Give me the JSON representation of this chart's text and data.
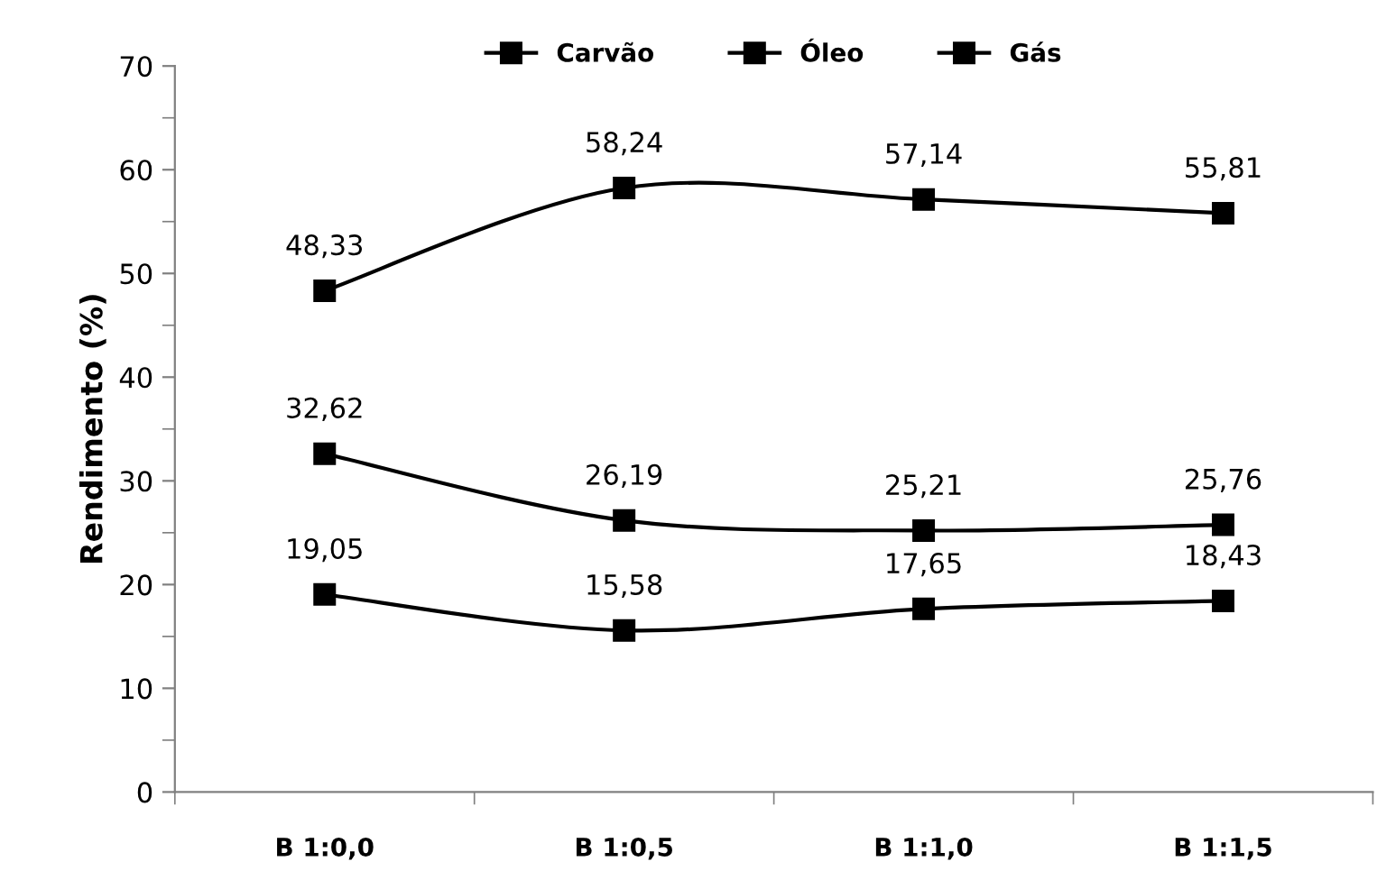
{
  "chart_data": {
    "type": "line",
    "ylabel": "Rendimento (%)",
    "categories": [
      "B 1:0,0",
      "B 1:0,5",
      "B 1:1,0",
      "B 1:1,5"
    ],
    "series": [
      {
        "name": "Carvão",
        "color": "#000000",
        "values": [
          48.33,
          58.24,
          57.14,
          55.81
        ],
        "value_labels": [
          "48,33",
          "58,24",
          "57,14",
          "55,81"
        ]
      },
      {
        "name": "Óleo",
        "color": "#000000",
        "values": [
          32.62,
          26.19,
          25.21,
          25.76
        ],
        "value_labels": [
          "32,62",
          "26,19",
          "25,21",
          "25,76"
        ]
      },
      {
        "name": "Gás",
        "color": "#000000",
        "values": [
          19.05,
          15.58,
          17.65,
          18.43
        ],
        "value_labels": [
          "19,05",
          "15,58",
          "17,65",
          "18,43"
        ]
      }
    ],
    "ylim": [
      0,
      70
    ],
    "yticks": [
      0,
      10,
      20,
      30,
      40,
      50,
      60,
      70
    ],
    "marker": "square",
    "line_style": "solid",
    "grid": false,
    "legend": "top"
  }
}
